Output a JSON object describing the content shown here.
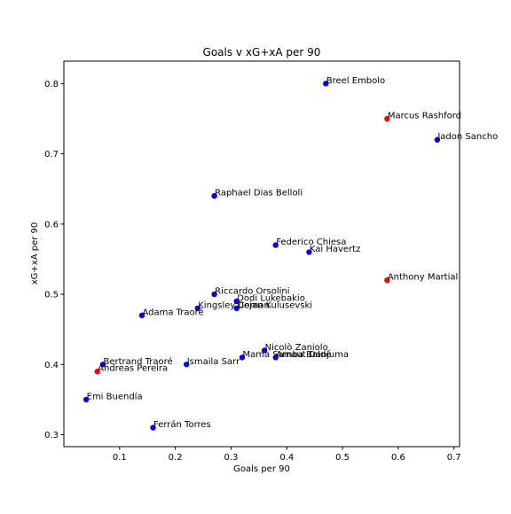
{
  "chart_data": {
    "type": "scatter",
    "title": "Goals v xG+xA per 90",
    "xlabel": "Goals per 90",
    "ylabel": "xG+xA per 90",
    "xlim": [
      0.0,
      0.71
    ],
    "ylim": [
      0.283,
      0.832
    ],
    "xticks": [
      0.1,
      0.2,
      0.3,
      0.4,
      0.5,
      0.6,
      0.7
    ],
    "xtick_labels": [
      "0.1",
      "0.2",
      "0.3",
      "0.4",
      "0.5",
      "0.6",
      "0.7"
    ],
    "yticks": [
      0.3,
      0.4,
      0.5,
      0.6,
      0.7,
      0.8
    ],
    "ytick_labels": [
      "0.3",
      "0.4",
      "0.5",
      "0.6",
      "0.7",
      "0.8"
    ],
    "grid": false,
    "colors": {
      "blue": "#0000ff",
      "red": "#ff0000",
      "axis": "#000000",
      "background": "#ffffff"
    },
    "points": [
      {
        "name": "Breel Embolo",
        "x": 0.47,
        "y": 0.8,
        "color": "blue"
      },
      {
        "name": "Marcus Rashford",
        "x": 0.58,
        "y": 0.75,
        "color": "red"
      },
      {
        "name": "Jadon Sancho",
        "x": 0.67,
        "y": 0.72,
        "color": "blue"
      },
      {
        "name": "Raphael Dias Belloli",
        "x": 0.27,
        "y": 0.64,
        "color": "blue"
      },
      {
        "name": "Federico Chiesa",
        "x": 0.38,
        "y": 0.57,
        "color": "blue"
      },
      {
        "name": "Kai Havertz",
        "x": 0.44,
        "y": 0.56,
        "color": "blue"
      },
      {
        "name": "Anthony Martial",
        "x": 0.58,
        "y": 0.52,
        "color": "red"
      },
      {
        "name": "Riccardo Orsolini",
        "x": 0.27,
        "y": 0.5,
        "color": "blue"
      },
      {
        "name": "Dodi Lukebakio",
        "x": 0.31,
        "y": 0.49,
        "color": "blue"
      },
      {
        "name": "Kingsley Coman",
        "x": 0.24,
        "y": 0.48,
        "color": "blue"
      },
      {
        "name": "Dejan Kulusevski",
        "x": 0.31,
        "y": 0.48,
        "color": "blue"
      },
      {
        "name": "Adama Traoré",
        "x": 0.14,
        "y": 0.47,
        "color": "blue"
      },
      {
        "name": "Nicolò Zaniolo",
        "x": 0.36,
        "y": 0.42,
        "color": "blue"
      },
      {
        "name": "Mama Samba Baldé",
        "x": 0.32,
        "y": 0.41,
        "color": "blue"
      },
      {
        "name": "Arnaut Danjuma",
        "x": 0.38,
        "y": 0.41,
        "color": "blue"
      },
      {
        "name": "Bertrand Traoré",
        "x": 0.07,
        "y": 0.4,
        "color": "blue"
      },
      {
        "name": "Ismaila Sarr",
        "x": 0.22,
        "y": 0.4,
        "color": "blue"
      },
      {
        "name": "Andreas Pereira",
        "x": 0.06,
        "y": 0.39,
        "color": "red"
      },
      {
        "name": "Emi Buendía",
        "x": 0.04,
        "y": 0.35,
        "color": "blue"
      },
      {
        "name": "Ferrán Torres",
        "x": 0.16,
        "y": 0.31,
        "color": "blue"
      }
    ]
  }
}
